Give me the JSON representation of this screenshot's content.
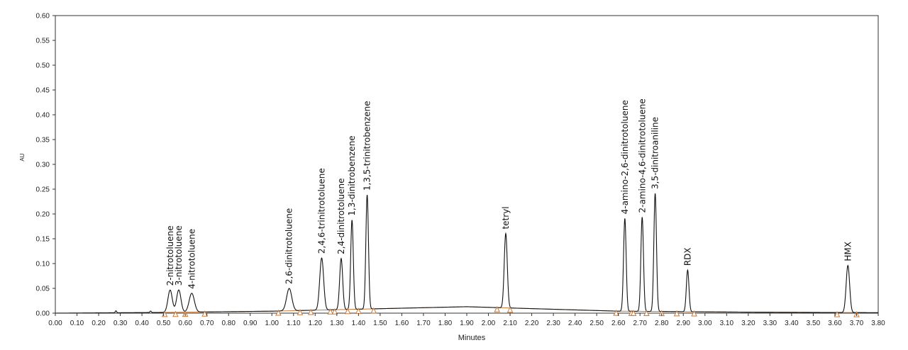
{
  "chart_data": {
    "type": "line",
    "xlabel": "Minutes",
    "ylabel": "AU",
    "xlim": [
      0.0,
      3.8
    ],
    "ylim": [
      0.0,
      0.6
    ],
    "x_ticks": [
      "0.00",
      "0.10",
      "0.20",
      "0.30",
      "0.40",
      "0.50",
      "0.60",
      "0.70",
      "0.80",
      "0.90",
      "1.00",
      "1.10",
      "1.20",
      "1.30",
      "1.40",
      "1.50",
      "1.60",
      "1.70",
      "1.80",
      "1.90",
      "2.00",
      "2.10",
      "2.20",
      "2.30",
      "2.40",
      "2.50",
      "2.60",
      "2.70",
      "2.80",
      "2.90",
      "3.00",
      "3.10",
      "3.20",
      "3.30",
      "3.40",
      "3.50",
      "3.60",
      "3.70",
      "3.80"
    ],
    "y_ticks": [
      "0.00",
      "0.05",
      "0.10",
      "0.15",
      "0.20",
      "0.25",
      "0.30",
      "0.35",
      "0.40",
      "0.45",
      "0.50",
      "0.55",
      "0.60"
    ],
    "grid": false,
    "trace_color": "#111111",
    "baseline_color": "#c87a3a",
    "peaks": [
      {
        "label": "2-nitrotoluene",
        "rt": 0.53,
        "height": 0.045,
        "width": 0.01
      },
      {
        "label": "3-nitrotoluene",
        "rt": 0.57,
        "height": 0.045,
        "width": 0.01
      },
      {
        "label": "4-nitrotoluene",
        "rt": 0.63,
        "height": 0.038,
        "width": 0.012
      },
      {
        "label": "2,6-dinitrotoluene",
        "rt": 1.08,
        "height": 0.045,
        "width": 0.012
      },
      {
        "label": "2,4,6-trinitrotoluene",
        "rt": 1.23,
        "height": 0.105,
        "width": 0.009
      },
      {
        "label": "2,4-dinitrotoluene",
        "rt": 1.32,
        "height": 0.103,
        "width": 0.007
      },
      {
        "label": "1,3-dinitrobenzene",
        "rt": 1.37,
        "height": 0.18,
        "width": 0.006
      },
      {
        "label": "1,3,5-trinitrobenzene",
        "rt": 1.44,
        "height": 0.23,
        "width": 0.006
      },
      {
        "label": "tetryl",
        "rt": 2.08,
        "height": 0.15,
        "width": 0.007
      },
      {
        "label": "4-amino-2,6-dinitrotoluene",
        "rt": 2.63,
        "height": 0.187,
        "width": 0.006
      },
      {
        "label": "2-amino-4,6-dinitrotoluene",
        "rt": 2.71,
        "height": 0.19,
        "width": 0.006
      },
      {
        "label": "3,5-dinitroaniline",
        "rt": 2.77,
        "height": 0.238,
        "width": 0.006
      },
      {
        "label": "RDX",
        "rt": 2.92,
        "height": 0.084,
        "width": 0.006
      },
      {
        "label": "HMX",
        "rt": 3.66,
        "height": 0.095,
        "width": 0.008
      }
    ],
    "integration_markers": [
      0.505,
      0.555,
      0.6,
      0.69,
      1.03,
      1.13,
      1.18,
      1.27,
      1.29,
      1.35,
      1.4,
      1.47,
      2.04,
      2.1,
      2.59,
      2.66,
      2.67,
      2.73,
      2.8,
      2.87,
      2.95,
      3.61,
      3.7
    ]
  }
}
